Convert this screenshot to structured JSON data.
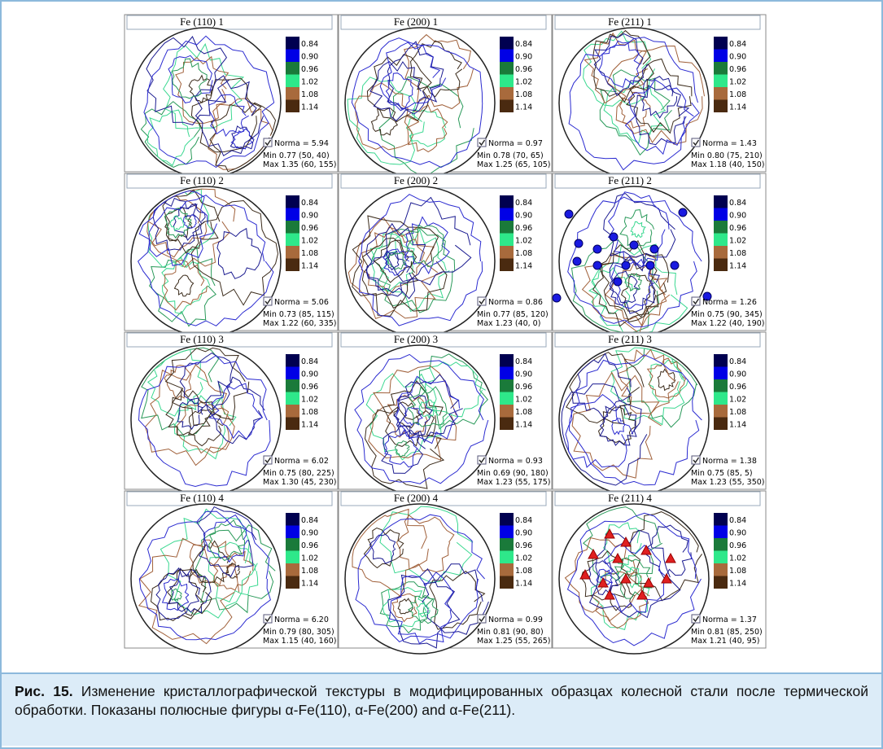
{
  "legend_levels": [
    "0.84",
    "0.90",
    "0.96",
    "1.02",
    "1.08",
    "1.14"
  ],
  "panels": [
    {
      "title": "Fe (110)  1",
      "norma": "Norma = 5.94",
      "min": "Min 0.77 (50, 40)",
      "max": "Max 1.35 (60, 155)"
    },
    {
      "title": "Fe (200) 1",
      "norma": "Norma = 0.97",
      "min": "Min 0.78 (70, 65)",
      "max": "Max 1.25 (65, 105)"
    },
    {
      "title": "Fe (211) 1",
      "norma": "Norma = 1.43",
      "min": "Min 0.80 (75, 210)",
      "max": "Max 1.18 (40, 150)"
    },
    {
      "title": "Fe (110)  2",
      "norma": "Norma = 5.06",
      "min": "Min 0.73 (85, 115)",
      "max": "Max 1.22 (60, 335)"
    },
    {
      "title": "Fe (200) 2",
      "norma": "Norma = 0.86",
      "min": "Min 0.77 (85, 120)",
      "max": "Max 1.23 (40, 0)"
    },
    {
      "title": "Fe (211) 2",
      "norma": "Norma = 1.26",
      "min": "Min 0.75 (90, 345)",
      "max": "Max 1.22 (40, 190)"
    },
    {
      "title": "Fe (110) 3",
      "norma": "Norma = 6.02",
      "min": "Min 0.75 (80, 225)",
      "max": "Max 1.30 (45, 230)"
    },
    {
      "title": "Fe (200) 3",
      "norma": "Norma = 0.93",
      "min": "Min 0.69 (90, 180)",
      "max": "Max 1.23 (55, 175)"
    },
    {
      "title": "Fe (211) 3",
      "norma": "Norma = 1.38",
      "min": "Min 0.75 (85, 5)",
      "max": "Max 1.23 (55, 350)"
    },
    {
      "title": "Fe (110) 4",
      "norma": "Norma = 6.20",
      "min": "Min 0.79 (80, 305)",
      "max": "Max 1.15 (40, 160)"
    },
    {
      "title": "Fe (200) 4",
      "norma": "Norma = 0.99",
      "min": "Min 0.81 (90, 80)",
      "max": "Max 1.25 (55, 265)"
    },
    {
      "title": "Fe (211) 4",
      "norma": "Norma = 1.37",
      "min": "Min 0.81 (85, 250)",
      "max": "Max 1.21 (40, 95)"
    }
  ],
  "caption": {
    "label": "Рис. 15.",
    "text": "Изменение кристаллографической текстуры в модифицированных образцах колесной стали после термической обработки. Показаны полюсные фигуры α-Fe(110), α-Fe(200) and α-Fe(211)."
  }
}
